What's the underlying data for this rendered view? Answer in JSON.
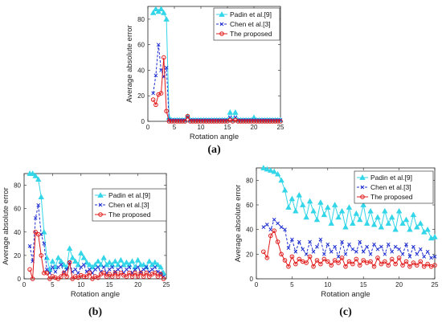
{
  "chart_data": [
    {
      "type": "line",
      "panel_label": "(a)",
      "xlabel": "Rotation angle",
      "ylabel": "Average absolute error",
      "xlim": [
        0,
        25
      ],
      "ylim": [
        0,
        90
      ],
      "xticks": [
        0,
        5,
        10,
        15,
        20,
        25
      ],
      "yticks": [
        0,
        20,
        40,
        60,
        80
      ],
      "legend_position": "top-right",
      "series": [
        {
          "name": "Padin et al.[9]",
          "color": "#33d6e8",
          "marker": "triangle",
          "x": [
            1,
            1.5,
            2,
            2.5,
            3,
            3.5,
            4,
            4.5,
            5,
            5.5,
            6,
            6.5,
            7,
            7.5,
            8,
            8.5,
            9,
            9.5,
            10,
            10.5,
            11,
            11.5,
            12,
            12.5,
            13,
            13.5,
            14,
            14.5,
            15,
            15.5,
            16,
            16.5,
            17,
            17.5,
            18,
            18.5,
            19,
            19.5,
            20,
            20.5,
            21,
            21.5,
            22,
            22.5,
            23,
            23.5,
            24,
            24.5,
            25
          ],
          "y": [
            85,
            88,
            86,
            88,
            85,
            80,
            3,
            1,
            1,
            1,
            1,
            1,
            1,
            4,
            1,
            1,
            1,
            1,
            1,
            1,
            1,
            1,
            1,
            1,
            1,
            1,
            1,
            1,
            1,
            7,
            1,
            7,
            1,
            1,
            1,
            1,
            1,
            1,
            3,
            1,
            1,
            1,
            1,
            1,
            1,
            1,
            1,
            1,
            1
          ]
        },
        {
          "name": "Chen et al.[3]",
          "color": "#1f2fd0",
          "marker": "x",
          "x": [
            1,
            1.5,
            2,
            2.5,
            3,
            3.5,
            4,
            4.5,
            5,
            5.5,
            6,
            6.5,
            7,
            7.5,
            8,
            8.5,
            9,
            9.5,
            10,
            10.5,
            11,
            11.5,
            12,
            12.5,
            13,
            13.5,
            14,
            14.5,
            15,
            15.5,
            16,
            16.5,
            17,
            17.5,
            18,
            18.5,
            19,
            19.5,
            20,
            20.5,
            21,
            21.5,
            22,
            22.5,
            23,
            23.5,
            24,
            24.5,
            25
          ],
          "y": [
            22,
            36,
            60,
            40,
            35,
            42,
            1,
            1,
            1,
            1,
            1,
            1,
            1,
            3,
            1,
            1,
            1,
            1,
            1,
            1,
            1,
            1,
            1,
            1,
            1,
            1,
            1,
            1,
            1,
            3,
            1,
            3,
            1,
            1,
            1,
            1,
            1,
            1,
            1,
            1,
            1,
            1,
            1,
            1,
            1,
            1,
            1,
            1,
            1
          ]
        },
        {
          "name": "The proposed",
          "color": "#e01b1b",
          "marker": "circle",
          "x": [
            1,
            1.5,
            2,
            2.5,
            3,
            3.5,
            4,
            4.5,
            5,
            5.5,
            6,
            6.5,
            7,
            7.5,
            8,
            8.5,
            9,
            9.5,
            10,
            10.5,
            11,
            11.5,
            12,
            12.5,
            13,
            13.5,
            14,
            14.5,
            15,
            15.5,
            16,
            16.5,
            17,
            17.5,
            18,
            18.5,
            19,
            19.5,
            20,
            20.5,
            21,
            21.5,
            22,
            22.5,
            23,
            23.5,
            24,
            24.5,
            25
          ],
          "y": [
            17,
            13,
            21,
            22,
            50,
            8,
            0,
            0,
            0,
            0,
            0,
            0,
            0,
            4,
            0,
            0,
            0,
            0,
            0,
            0,
            0,
            0,
            0,
            0,
            0,
            0,
            0,
            0,
            0,
            1,
            0,
            1,
            0,
            0,
            0,
            0,
            0,
            0,
            0,
            0,
            0,
            0,
            0,
            0,
            0,
            0,
            0,
            0,
            0
          ]
        }
      ]
    },
    {
      "type": "line",
      "panel_label": "(b)",
      "xlabel": "Rotation angle",
      "ylabel": "Average absolute error",
      "xlim": [
        0,
        25
      ],
      "ylim": [
        0,
        90
      ],
      "xticks": [
        0,
        5,
        10,
        15,
        20,
        25
      ],
      "yticks": [
        0,
        20,
        40,
        60,
        80
      ],
      "legend_position": "top-right",
      "series": [
        {
          "name": "Padin et al.[9]",
          "color": "#33d6e8",
          "marker": "triangle",
          "x": [
            1,
            1.5,
            2,
            2.5,
            3,
            3.5,
            4,
            4.5,
            5,
            5.5,
            6,
            6.5,
            7,
            7.5,
            8,
            8.5,
            9,
            9.5,
            10,
            10.5,
            11,
            11.5,
            12,
            12.5,
            13,
            13.5,
            14,
            14.5,
            15,
            15.5,
            16,
            16.5,
            17,
            17.5,
            18,
            18.5,
            19,
            19.5,
            20,
            20.5,
            21,
            21.5,
            22,
            22.5,
            23,
            23.5,
            24,
            24.5
          ],
          "y": [
            90,
            90,
            88,
            85,
            70,
            40,
            18,
            8,
            15,
            10,
            18,
            15,
            12,
            10,
            26,
            18,
            15,
            12,
            22,
            18,
            14,
            12,
            10,
            12,
            15,
            12,
            18,
            12,
            14,
            12,
            15,
            12,
            16,
            12,
            14,
            12,
            15,
            10,
            16,
            12,
            12,
            10,
            15,
            12,
            14,
            12,
            10,
            5
          ]
        },
        {
          "name": "Chen et al.[3]",
          "color": "#1f2fd0",
          "marker": "x",
          "x": [
            1,
            1.5,
            2,
            2.5,
            3,
            3.5,
            4,
            4.5,
            5,
            5.5,
            6,
            6.5,
            7,
            7.5,
            8,
            8.5,
            9,
            9.5,
            10,
            10.5,
            11,
            11.5,
            12,
            12.5,
            13,
            13.5,
            14,
            14.5,
            15,
            15.5,
            16,
            16.5,
            17,
            17.5,
            18,
            18.5,
            19,
            19.5,
            20,
            20.5,
            21,
            21.5,
            22,
            22.5,
            23,
            23.5,
            24,
            24.5
          ],
          "y": [
            28,
            15,
            52,
            63,
            38,
            30,
            8,
            5,
            10,
            6,
            10,
            12,
            5,
            8,
            14,
            6,
            8,
            5,
            10,
            12,
            6,
            8,
            5,
            8,
            10,
            6,
            10,
            5,
            8,
            10,
            6,
            8,
            10,
            5,
            8,
            10,
            5,
            8,
            10,
            6,
            8,
            10,
            6,
            8,
            10,
            6,
            5,
            2
          ]
        },
        {
          "name": "The proposed",
          "color": "#e01b1b",
          "marker": "circle",
          "x": [
            1,
            1.5,
            2,
            2.5,
            3,
            3.5,
            4,
            4.5,
            5,
            5.5,
            6,
            6.5,
            7,
            7.5,
            8,
            8.5,
            9,
            9.5,
            10,
            10.5,
            11,
            11.5,
            12,
            12.5,
            13,
            13.5,
            14,
            14.5,
            15,
            15.5,
            16,
            16.5,
            17,
            17.5,
            18,
            18.5,
            19,
            19.5,
            20,
            20.5,
            21,
            21.5,
            22,
            22.5,
            23,
            23.5,
            24,
            24.5
          ],
          "y": [
            8,
            0,
            40,
            38,
            20,
            5,
            5,
            0,
            2,
            1,
            0,
            2,
            5,
            2,
            14,
            0,
            2,
            1,
            3,
            2,
            2,
            5,
            0,
            2,
            1,
            4,
            5,
            2,
            4,
            2,
            5,
            2,
            5,
            3,
            2,
            5,
            2,
            5,
            2,
            5,
            2,
            5,
            2,
            4,
            5,
            2,
            4,
            0
          ]
        }
      ]
    },
    {
      "type": "line",
      "panel_label": "(c)",
      "xlabel": "Rotation angle",
      "ylabel": "Average absolute error",
      "xlim": [
        0,
        25
      ],
      "ylim": [
        0,
        90
      ],
      "xticks": [
        0,
        5,
        10,
        15,
        20,
        25
      ],
      "yticks": [
        0,
        20,
        40,
        60,
        80
      ],
      "legend_position": "top-right",
      "series": [
        {
          "name": "Padin et al.[9]",
          "color": "#33d6e8",
          "marker": "triangle",
          "x": [
            1,
            1.5,
            2,
            2.5,
            3,
            3.5,
            4,
            4.5,
            5,
            5.5,
            6,
            6.5,
            7,
            7.5,
            8,
            8.5,
            9,
            9.5,
            10,
            10.5,
            11,
            11.5,
            12,
            12.5,
            13,
            13.5,
            14,
            14.5,
            15,
            15.5,
            16,
            16.5,
            17,
            17.5,
            18,
            18.5,
            19,
            19.5,
            20,
            20.5,
            21,
            21.5,
            22,
            22.5,
            23,
            23.5,
            24,
            24.5,
            25
          ],
          "y": [
            90,
            89,
            88,
            87,
            85,
            80,
            72,
            58,
            65,
            55,
            68,
            60,
            50,
            63,
            55,
            48,
            62,
            52,
            58,
            45,
            60,
            50,
            55,
            42,
            58,
            45,
            53,
            48,
            60,
            45,
            55,
            44,
            50,
            42,
            55,
            45,
            50,
            40,
            55,
            45,
            48,
            40,
            52,
            42,
            45,
            38,
            40,
            33,
            34
          ]
        },
        {
          "name": "Chen et al.[3]",
          "color": "#1f2fd0",
          "marker": "x",
          "x": [
            1,
            1.5,
            2,
            2.5,
            3,
            3.5,
            4,
            4.5,
            5,
            5.5,
            6,
            6.5,
            7,
            7.5,
            8,
            8.5,
            9,
            9.5,
            10,
            10.5,
            11,
            11.5,
            12,
            12.5,
            13,
            13.5,
            14,
            14.5,
            15,
            15.5,
            16,
            16.5,
            17,
            17.5,
            18,
            18.5,
            19,
            19.5,
            20,
            20.5,
            21,
            21.5,
            22,
            22.5,
            23,
            23.5,
            24,
            24.5,
            25
          ],
          "y": [
            42,
            44,
            40,
            48,
            45,
            42,
            40,
            25,
            32,
            22,
            30,
            24,
            20,
            30,
            22,
            26,
            32,
            20,
            28,
            22,
            26,
            18,
            30,
            20,
            28,
            24,
            22,
            30,
            22,
            26,
            20,
            28,
            24,
            26,
            20,
            28,
            22,
            26,
            24,
            20,
            28,
            18,
            26,
            20,
            24,
            18,
            22,
            17,
            18
          ]
        },
        {
          "name": "The proposed",
          "color": "#e01b1b",
          "marker": "circle",
          "x": [
            1,
            1.5,
            2,
            2.5,
            3,
            3.5,
            4,
            4.5,
            5,
            5.5,
            6,
            6.5,
            7,
            7.5,
            8,
            8.5,
            9,
            9.5,
            10,
            10.5,
            11,
            11.5,
            12,
            12.5,
            13,
            13.5,
            14,
            14.5,
            15,
            15.5,
            16,
            16.5,
            17,
            17.5,
            18,
            18.5,
            19,
            19.5,
            20,
            20.5,
            21,
            21.5,
            22,
            22.5,
            23,
            23.5,
            24,
            24.5,
            25
          ],
          "y": [
            22,
            17,
            35,
            39,
            30,
            20,
            15,
            10,
            18,
            12,
            16,
            14,
            13,
            18,
            10,
            15,
            12,
            16,
            14,
            11,
            15,
            13,
            17,
            10,
            14,
            12,
            16,
            11,
            15,
            13,
            14,
            10,
            17,
            12,
            14,
            11,
            16,
            12,
            17,
            11,
            14,
            10,
            13,
            11,
            14,
            10,
            12,
            10,
            11
          ]
        }
      ]
    }
  ]
}
